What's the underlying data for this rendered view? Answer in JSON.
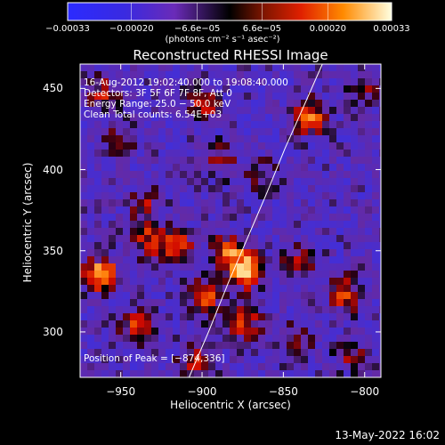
{
  "chart_data": {
    "type": "heatmap",
    "title": "Reconstructed RHESSI Image",
    "xlabel": "Heliocentric X (arcsec)",
    "ylabel": "Heliocentric Y (arcsec)",
    "xlim": [
      -975,
      -790
    ],
    "ylim": [
      272,
      465
    ],
    "x_ticks": [
      {
        "value": -950,
        "label": "−950"
      },
      {
        "value": -900,
        "label": "−900"
      },
      {
        "value": -850,
        "label": "−850"
      },
      {
        "value": -800,
        "label": "−800"
      }
    ],
    "y_ticks": [
      {
        "value": 300,
        "label": "300"
      },
      {
        "value": 350,
        "label": "350"
      },
      {
        "value": 400,
        "label": "400"
      },
      {
        "value": 450,
        "label": "450"
      }
    ],
    "colorbar": {
      "min": -0.00033,
      "max": 0.00033,
      "unit_label": "(photons cm⁻² s⁻¹ asec⁻²)",
      "ticks": [
        {
          "value": -0.00033,
          "label": "−0.00033"
        },
        {
          "value": -0.0002,
          "label": "−0.00020"
        },
        {
          "value": -6.6e-05,
          "label": "−6.6e−05"
        },
        {
          "value": 6.6e-05,
          "label": "6.6e−05"
        },
        {
          "value": 0.0002,
          "label": "0.00020"
        },
        {
          "value": 0.00033,
          "label": "0.00033"
        }
      ]
    },
    "annotations": {
      "time_range": "16‑Aug‑2012 19:02:40.000 to 19:08:40.000",
      "detectors": "Detectors: 3F 5F 6F 7F 8F, Att 0",
      "energy_range": "Energy Range: 25.0 − 50.0 keV",
      "clean_counts": "Clean      Total counts: 6.54E+03",
      "peak_position": "Position of Peak = [−874,336]"
    },
    "peak": {
      "x": -874,
      "y": 336
    },
    "limb_curve": [
      {
        "x": -908,
        "y": 272
      },
      {
        "x": -896,
        "y": 300
      },
      {
        "x": -884,
        "y": 330
      },
      {
        "x": -872,
        "y": 358
      },
      {
        "x": -860,
        "y": 386
      },
      {
        "x": -849,
        "y": 413
      },
      {
        "x": -837,
        "y": 440
      },
      {
        "x": -826,
        "y": 465
      }
    ],
    "sources": [
      {
        "x": -873,
        "y": 338,
        "amp": 1.0
      },
      {
        "x": -884,
        "y": 350,
        "amp": 0.6
      },
      {
        "x": -962,
        "y": 335,
        "amp": 0.9
      },
      {
        "x": -835,
        "y": 432,
        "amp": 0.8
      },
      {
        "x": -916,
        "y": 352,
        "amp": 0.7
      },
      {
        "x": -934,
        "y": 357,
        "amp": 0.5
      },
      {
        "x": -935,
        "y": 378,
        "amp": 0.35
      },
      {
        "x": -874,
        "y": 306,
        "amp": 0.55
      },
      {
        "x": -940,
        "y": 303,
        "amp": 0.55
      },
      {
        "x": -898,
        "y": 321,
        "amp": 0.6
      },
      {
        "x": -840,
        "y": 343,
        "amp": 0.45
      },
      {
        "x": -812,
        "y": 323,
        "amp": 0.55
      },
      {
        "x": -900,
        "y": 440,
        "amp": 0.5
      },
      {
        "x": -962,
        "y": 447,
        "amp": 0.45
      },
      {
        "x": -889,
        "y": 406,
        "amp": 0.35
      },
      {
        "x": -903,
        "y": 282,
        "amp": 0.5
      },
      {
        "x": -843,
        "y": 294,
        "amp": 0.4
      },
      {
        "x": -952,
        "y": 418,
        "amp": 0.3
      },
      {
        "x": -808,
        "y": 287,
        "amp": 0.35
      },
      {
        "x": -864,
        "y": 396,
        "amp": 0.3
      },
      {
        "x": -800,
        "y": 452,
        "amp": 0.3
      }
    ]
  },
  "timestamp": "13‑May‑2022 16:02"
}
